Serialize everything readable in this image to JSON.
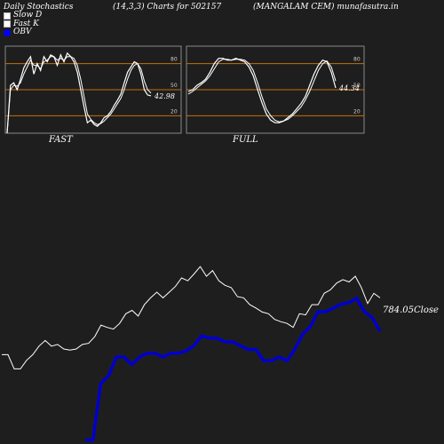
{
  "header": {
    "left": "Daily Stochastics",
    "center_left": "(14,3,3) Charts for 502157",
    "center_right": "(MANGALAM CEM) munafasutra.in"
  },
  "legend": [
    {
      "label": "Slow  D",
      "color": "#ffffff"
    },
    {
      "label": "Fast K",
      "color": "#ffffff"
    },
    {
      "label": "OBV",
      "color": "#0000ff"
    }
  ],
  "colors": {
    "background": "#1f1e1e",
    "panel_border": "#888888",
    "level_line": "#c07010",
    "stoch_line": "#ffffff",
    "obv_line": "#0000cc"
  },
  "chart_data": [
    {
      "type": "line",
      "title": "FAST",
      "ylim": [
        0,
        100
      ],
      "yticks": [
        20,
        50,
        80
      ],
      "level_lines": [
        20,
        50,
        80
      ],
      "last_value_label": "42.98",
      "series": [
        {
          "name": "Fast K",
          "values": [
            0,
            55,
            58,
            50,
            62,
            75,
            82,
            88,
            68,
            80,
            72,
            88,
            82,
            90,
            88,
            78,
            90,
            82,
            92,
            88,
            82,
            70,
            50,
            30,
            12,
            15,
            10,
            8,
            12,
            18,
            20,
            25,
            32,
            38,
            45,
            58,
            70,
            76,
            82,
            80,
            68,
            50,
            44,
            43
          ]
        },
        {
          "name": "Slow  D",
          "values": [
            0,
            50,
            55,
            54,
            58,
            68,
            76,
            84,
            78,
            78,
            74,
            82,
            84,
            88,
            88,
            84,
            86,
            84,
            88,
            88,
            86,
            78,
            62,
            42,
            22,
            16,
            12,
            10,
            11,
            14,
            18,
            22,
            28,
            34,
            40,
            50,
            62,
            72,
            78,
            80,
            74,
            60,
            50,
            46
          ]
        }
      ]
    },
    {
      "type": "line",
      "title": "FULL",
      "ylim": [
        0,
        100
      ],
      "yticks": [
        20,
        50,
        80
      ],
      "level_lines": [
        20,
        50,
        80
      ],
      "last_value_label": "44.34",
      "series": [
        {
          "name": "Fast K",
          "values": [
            48,
            50,
            55,
            58,
            62,
            70,
            80,
            86,
            86,
            84,
            84,
            86,
            84,
            82,
            76,
            66,
            50,
            35,
            22,
            15,
            12,
            12,
            14,
            18,
            22,
            28,
            34,
            42,
            55,
            68,
            78,
            84,
            82,
            70,
            52
          ]
        },
        {
          "name": "Slow  D",
          "values": [
            45,
            48,
            52,
            56,
            60,
            66,
            74,
            82,
            85,
            85,
            84,
            85,
            85,
            84,
            80,
            72,
            58,
            42,
            28,
            20,
            15,
            13,
            14,
            16,
            20,
            25,
            30,
            38,
            48,
            60,
            72,
            80,
            83,
            76,
            60
          ]
        }
      ]
    },
    {
      "type": "line",
      "last_value_label": "784.05Close",
      "series": [
        {
          "name": "Close",
          "values": [
            40,
            40,
            15,
            15,
            30,
            40,
            55,
            65,
            55,
            58,
            50,
            48,
            50,
            58,
            60,
            72,
            92,
            88,
            85,
            95,
            112,
            118,
            108,
            128,
            140,
            150,
            140,
            150,
            160,
            175,
            170,
            182,
            195,
            178,
            188,
            170,
            162,
            158,
            142,
            140,
            128,
            122,
            115,
            112,
            102,
            98,
            95,
            88,
            112,
            110,
            128,
            128,
            148,
            154,
            166,
            172,
            168,
            178,
            158,
            130,
            148,
            140
          ]
        },
        {
          "name": "OBV",
          "values": [
            -130,
            -130,
            -55,
            -45,
            -20,
            -20,
            -30,
            -20,
            -15,
            -15,
            -20,
            -15,
            -15,
            -12,
            -5,
            8,
            5,
            5,
            0,
            0,
            -5,
            -10,
            -10,
            -25,
            -25,
            -20,
            -25,
            -10,
            10,
            20,
            40,
            40,
            45,
            50,
            52,
            58,
            40,
            32,
            14
          ]
        }
      ]
    }
  ]
}
